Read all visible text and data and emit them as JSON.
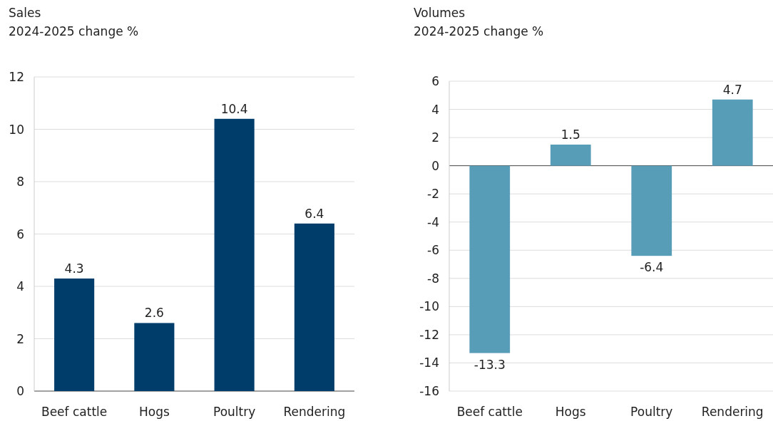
{
  "chart_data": [
    {
      "type": "bar",
      "title": "Sales",
      "subtitle": "2024-2025 change %",
      "categories": [
        "Beef cattle",
        "Hogs",
        "Poultry",
        "Rendering"
      ],
      "values": [
        4.3,
        2.6,
        10.4,
        6.4
      ],
      "color": "#003d6b",
      "ylim": [
        0,
        12
      ],
      "yticks": [
        0,
        2,
        4,
        6,
        8,
        10,
        12
      ],
      "grid": "y",
      "data_labels": true
    },
    {
      "type": "bar",
      "title": "Volumes",
      "subtitle": "2024-2025 change %",
      "categories": [
        "Beef cattle",
        "Hogs",
        "Poultry",
        "Rendering"
      ],
      "values": [
        -13.3,
        1.5,
        -6.4,
        4.7
      ],
      "color": "#589db8",
      "ylim": [
        -16,
        6
      ],
      "yticks": [
        -16,
        -14,
        -12,
        -10,
        -8,
        -6,
        -4,
        -2,
        0,
        2,
        4,
        6
      ],
      "grid": "y",
      "data_labels": true
    }
  ]
}
